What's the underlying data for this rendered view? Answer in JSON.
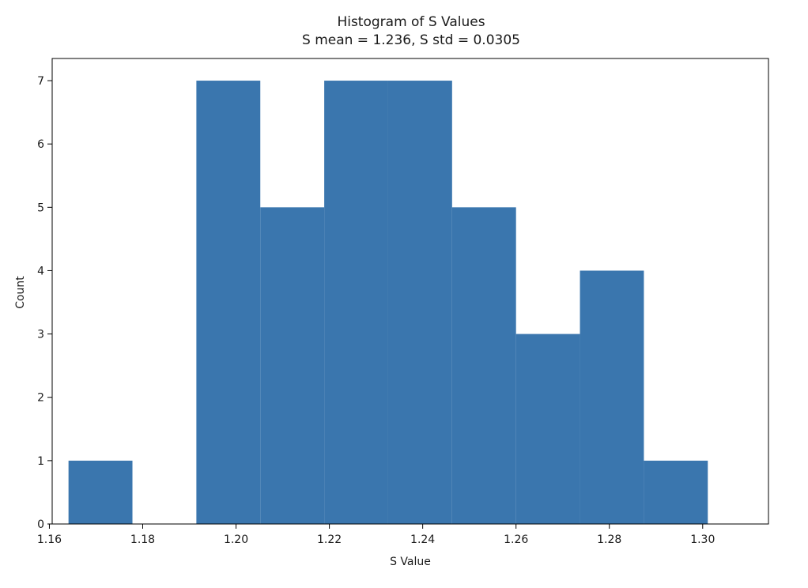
{
  "chart_data": {
    "type": "bar",
    "title": "Histogram of S Values",
    "subtitle": "S mean = 1.236, S std = 0.0305",
    "xlabel": "S Value",
    "ylabel": "Count",
    "xlim": [
      1.1606,
      1.3141
    ],
    "ylim": [
      0,
      7.35
    ],
    "bin_edges": [
      1.1641,
      1.1778,
      1.1915,
      1.2052,
      1.2189,
      1.2326,
      1.2463,
      1.26,
      1.2737,
      1.2874,
      1.3011
    ],
    "values": [
      1,
      0,
      7,
      5,
      7,
      7,
      5,
      3,
      4,
      1
    ],
    "x_ticks": [
      1.16,
      1.18,
      1.2,
      1.22,
      1.24,
      1.26,
      1.28,
      1.3
    ],
    "x_tick_labels": [
      "1.16",
      "1.18",
      "1.20",
      "1.22",
      "1.24",
      "1.26",
      "1.28",
      "1.30"
    ],
    "y_ticks": [
      0,
      1,
      2,
      3,
      4,
      5,
      6,
      7
    ],
    "y_tick_labels": [
      "0",
      "1",
      "2",
      "3",
      "4",
      "5",
      "6",
      "7"
    ],
    "bar_color": "#3a76ae",
    "grid": false,
    "legend": "none"
  }
}
